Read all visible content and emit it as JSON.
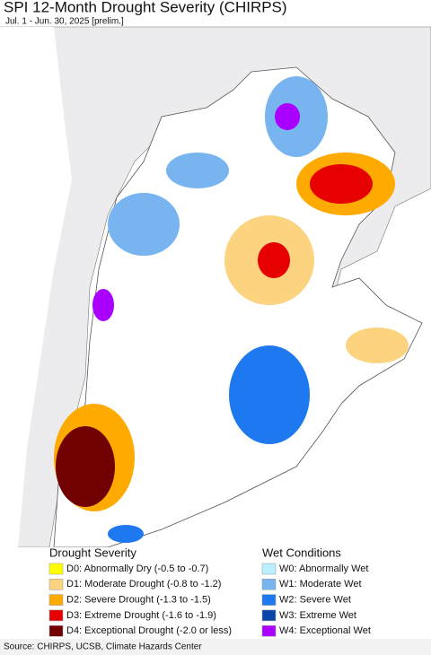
{
  "header": {
    "title": "SPI 12-Month Drought Severity (CHIRPS)",
    "subtitle": "Jul. 1 - Jun. 30, 2025 [prelim.]"
  },
  "legend": {
    "groups": [
      {
        "title": "Drought Severity",
        "items": [
          {
            "label": "D0: Abnormally Dry (-0.5 to -0.7)",
            "color": "#ffff00"
          },
          {
            "label": "D1: Moderate Drought (-0.8 to -1.2)",
            "color": "#fcd37f"
          },
          {
            "label": "D2: Severe Drought (-1.3 to -1.5)",
            "color": "#ffaa00"
          },
          {
            "label": "D3: Extreme Drought (-1.6 to -1.9)",
            "color": "#e60000"
          },
          {
            "label": "D4: Exceptional Drought (-2.0 or less)",
            "color": "#730000"
          }
        ]
      },
      {
        "title": "Wet Conditions",
        "items": [
          {
            "label": "W0: Abnormally Wet",
            "color": "#b9f0ff"
          },
          {
            "label": "W1: Moderate Wet",
            "color": "#78b4f0"
          },
          {
            "label": "W2: Severe Wet",
            "color": "#1e78f0"
          },
          {
            "label": "W3: Extreme Wet",
            "color": "#0a46aa"
          },
          {
            "label": "W4: Exceptional Wet",
            "color": "#aa00ff"
          }
        ]
      }
    ]
  },
  "footer": {
    "source": "Source: CHIRPS, UCSB, Climate Hazards Center"
  }
}
